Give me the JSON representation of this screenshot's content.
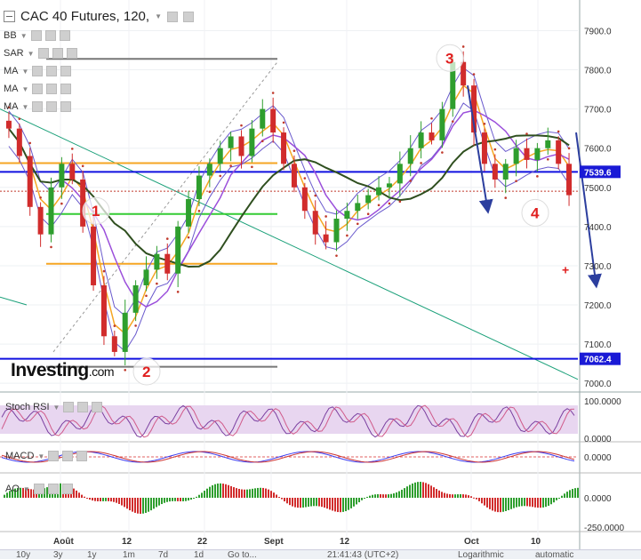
{
  "title": "CAC 40 Futures, 120,",
  "indicators": {
    "main": [
      "BB",
      "SAR",
      "MA",
      "MA",
      "MA"
    ],
    "stoch": "Stoch RSI",
    "macd": "MACD",
    "ao": "AO"
  },
  "logo": {
    "brand": "Investing",
    "suffix": ".com"
  },
  "price_axis": {
    "ticks": [
      "7900.0",
      "7800.0",
      "7700.0",
      "7600.0",
      "7500.0",
      "7400.0",
      "7300.0",
      "7200.0",
      "7100.0",
      "7000.0"
    ],
    "labels": [
      {
        "text": "7539.6",
        "color": "#1a1ad6"
      },
      {
        "text": "7062.4",
        "color": "#1a1ad6"
      }
    ]
  },
  "stoch_axis": [
    "100.0000",
    "0.0000"
  ],
  "macd_axis": [
    "0.0000"
  ],
  "ao_axis": [
    "0.0000",
    "-250.0000"
  ],
  "x_labels": [
    "Août",
    "12",
    "22",
    "Sept",
    "12",
    "Oct",
    "10"
  ],
  "annotations": [
    "1",
    "2",
    "3",
    "4"
  ],
  "bottom_bar": [
    "10y",
    "3y",
    "1y",
    "1m",
    "7d",
    "1d",
    "Go to...",
    "21:41:43 (UTC+2)",
    "Logarithmic",
    "automatic"
  ],
  "colors": {
    "candle_up": "#2e9e2e",
    "candle_down": "#d12c2c",
    "level_line": "#1010e0",
    "orange_line": "#f5a623",
    "green_line": "#33cc33",
    "ma_dark": "#2f4f1f",
    "ma_purple": "#9b4fdb",
    "bb": "#6a5acd",
    "annotation": "#e02020",
    "arrow": "#2c3e9e"
  },
  "chart_data": {
    "type": "candlestick",
    "instrument": "CAC 40 Futures",
    "interval": "120",
    "ylim": [
      6980,
      7960
    ],
    "x_labels": [
      "Août",
      "12",
      "22",
      "Sept",
      "12",
      "Oct",
      "10"
    ],
    "horizontal_levels": [
      {
        "value": 7539.6,
        "color": "#1010e0",
        "label": "7539.6"
      },
      {
        "value": 7062.4,
        "color": "#1010e0",
        "label": "7062.4"
      },
      {
        "value": 7562,
        "color": "#f5a623"
      },
      {
        "value": 7305,
        "color": "#f5a623"
      },
      {
        "value": 7432,
        "color": "#33cc33"
      },
      {
        "value": 7828,
        "color": "#777777"
      },
      {
        "value": 7042,
        "color": "#777777"
      },
      {
        "value": 7490,
        "color": "#c0392b",
        "style": "dotted"
      }
    ],
    "close_path": [
      7650,
      7580,
      7450,
      7380,
      7500,
      7560,
      7520,
      7400,
      7250,
      7120,
      7080,
      7180,
      7250,
      7290,
      7330,
      7280,
      7400,
      7470,
      7530,
      7560,
      7600,
      7630,
      7580,
      7650,
      7700,
      7640,
      7560,
      7500,
      7440,
      7380,
      7360,
      7420,
      7440,
      7460,
      7480,
      7500,
      7510,
      7560,
      7600,
      7640,
      7620,
      7700,
      7820,
      7760,
      7640,
      7560,
      7520,
      7560,
      7600,
      7570,
      7600,
      7620,
      7560,
      7480
    ]
  }
}
